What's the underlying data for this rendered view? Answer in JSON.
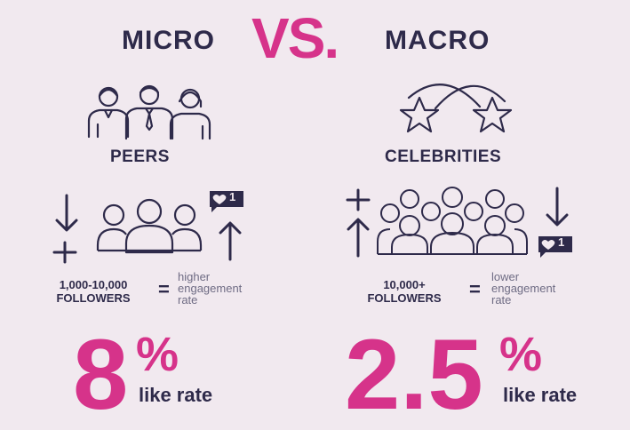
{
  "header": {
    "left_word": "MICRO",
    "vs": "VS.",
    "right_word": "MACRO"
  },
  "micro": {
    "label": "PEERS",
    "followers_range": "1,000-10,000",
    "followers_word": "FOLLOWERS",
    "equals": "=",
    "engagement_lines": [
      "higher",
      "engagement",
      "rate"
    ],
    "like_badge": "1",
    "rate_number": "8",
    "rate_percent": "%",
    "rate_label": "like rate"
  },
  "macro": {
    "label": "CELEBRITIES",
    "followers_range": "10,000+",
    "followers_word": "FOLLOWERS",
    "equals": "=",
    "engagement_lines": [
      "lower",
      "engagement",
      "rate"
    ],
    "like_badge": "1",
    "rate_number": "2.5",
    "rate_percent": "%",
    "rate_label": "like rate"
  },
  "colors": {
    "accent": "#d6338a",
    "ink": "#2e2a4a",
    "muted": "#6f6c84",
    "background": "#f1e9ef"
  },
  "icons": [
    "peers-people-icon",
    "celebrity-stars-icon",
    "down-arrow-icon",
    "plus-icon",
    "up-arrow-icon",
    "heart-like-badge-icon",
    "group-of-people-icon",
    "crowd-of-people-icon"
  ]
}
